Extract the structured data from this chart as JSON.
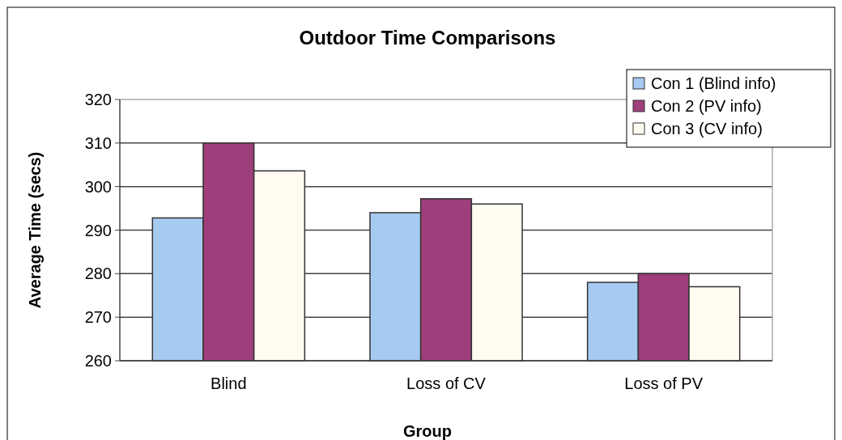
{
  "chart_data": {
    "type": "bar",
    "title": "Outdoor Time Comparisons",
    "xlabel": "Group",
    "ylabel": "Average Time (secs)",
    "categories": [
      "Blind",
      "Loss of CV",
      "Loss of PV"
    ],
    "series": [
      {
        "name": "Con 1 (Blind info)",
        "color": "#a6caf0",
        "values": [
          292.8,
          294.0,
          278.0
        ]
      },
      {
        "name": "Con 2 (PV info)",
        "color": "#9e3f7c",
        "values": [
          310.0,
          297.2,
          280.0
        ]
      },
      {
        "name": "Con 3 (CV info)",
        "color": "#fffbf0",
        "values": [
          303.6,
          296.0,
          277.0
        ]
      }
    ],
    "ylim": [
      260,
      320
    ],
    "yticks": [
      260,
      270,
      280,
      290,
      300,
      310,
      320
    ],
    "grid": "y",
    "legend": "top right"
  }
}
